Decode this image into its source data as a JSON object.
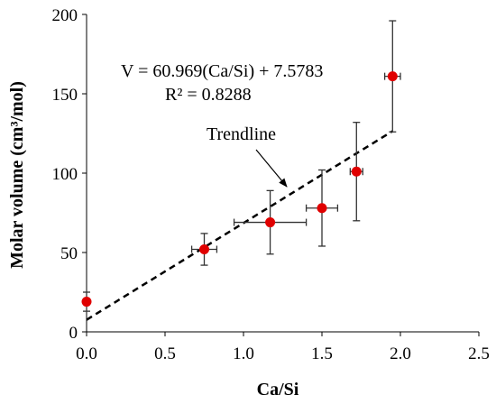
{
  "chart_data": {
    "type": "scatter",
    "xlabel": "Ca/Si",
    "ylabel": "Molar volume (cm³/mol)",
    "xlim": [
      0,
      2.5
    ],
    "ylim": [
      0,
      200
    ],
    "xticks": [
      "0.0",
      "0.5",
      "1.0",
      "1.5",
      "2.0",
      "2.5"
    ],
    "yticks": [
      "0",
      "50",
      "100",
      "150",
      "200"
    ],
    "grid": false,
    "marker_color": "#e00000",
    "points": [
      {
        "x": 0.0,
        "y": 19,
        "xerr": 0,
        "yerr": 6
      },
      {
        "x": 0.75,
        "y": 52,
        "xerr": 0.08,
        "yerr": 10
      },
      {
        "x": 1.17,
        "y": 69,
        "xerr": 0.23,
        "yerr": 20
      },
      {
        "x": 1.5,
        "y": 78,
        "xerr": 0.1,
        "yerr": 24
      },
      {
        "x": 1.72,
        "y": 101,
        "xerr": 0.04,
        "yerr": 31
      },
      {
        "x": 1.95,
        "y": 161,
        "xerr": 0.05,
        "yerr": 35
      }
    ],
    "trendline": {
      "slope": 60.969,
      "intercept": 7.5783,
      "x_range": [
        0,
        1.95
      ],
      "style": "dashed"
    },
    "annotations": {
      "equation": "V = 60.969(Ca/Si)  + 7.5783",
      "r_squared": "R² = 0.8288",
      "trendline_label": "Trendline"
    }
  }
}
